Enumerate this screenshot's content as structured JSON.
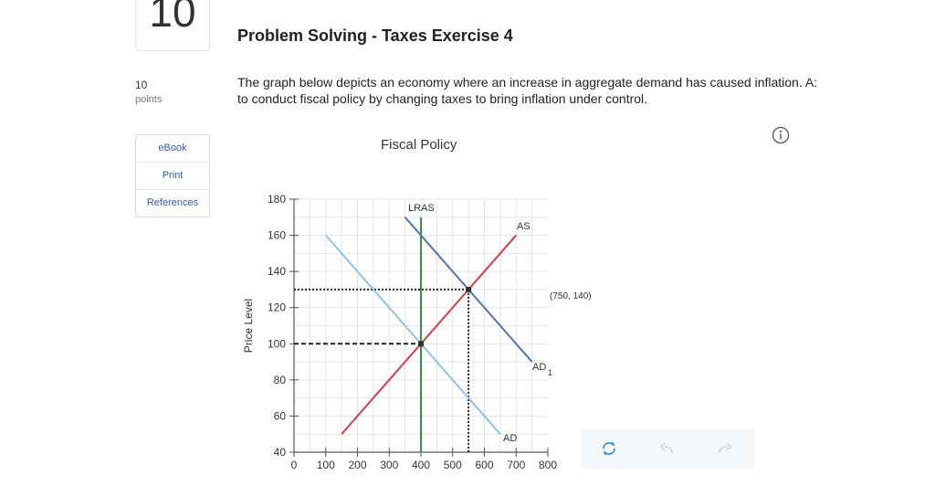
{
  "question": {
    "number": "10",
    "points_value": "10",
    "points_label": "points",
    "title": "Problem Solving - Taxes Exercise 4",
    "text": "The graph below depicts an economy where an increase in aggregate demand has caused inflation. A:\nto conduct fiscal policy by changing taxes to bring inflation under control."
  },
  "sidebar": {
    "items": [
      {
        "label": "eBook"
      },
      {
        "label": "Print"
      },
      {
        "label": "References"
      }
    ]
  },
  "graph": {
    "title": "Fiscal Policy",
    "ylabel": "Price Level",
    "info_icon": "info-circle-icon"
  },
  "toolbar": {
    "icons": [
      "reset-icon",
      "undo-icon",
      "redo-icon"
    ],
    "accent": "#2b86c9"
  },
  "chart_data": {
    "type": "line",
    "title": "Fiscal Policy",
    "xlabel": "",
    "ylabel": "Price Level",
    "xlim": [
      0,
      800
    ],
    "ylim": [
      40,
      180
    ],
    "x_ticks": [
      0,
      100,
      200,
      300,
      400,
      500,
      600,
      700,
      800
    ],
    "y_ticks": [
      40,
      60,
      80,
      100,
      120,
      140,
      160,
      180
    ],
    "grid": true,
    "series": [
      {
        "name": "LRAS",
        "color": "#2e9a3e",
        "points": [
          [
            400,
            40
          ],
          [
            400,
            170
          ]
        ]
      },
      {
        "name": "AS",
        "color": "#e0393e",
        "points": [
          [
            150,
            50
          ],
          [
            700,
            160
          ]
        ]
      },
      {
        "name": "AD",
        "color": "#8cc4e6",
        "points": [
          [
            100,
            160
          ],
          [
            650,
            50
          ]
        ]
      },
      {
        "name": "AD1",
        "color": "#4d74b0",
        "points": [
          [
            350,
            170
          ],
          [
            750,
            90
          ]
        ]
      }
    ],
    "equilibria": [
      {
        "x": 400,
        "y": 100
      },
      {
        "x": 550,
        "y": 130
      }
    ],
    "annotations": [
      {
        "text": "LRAS"
      },
      {
        "text": "AS"
      },
      {
        "text": "AD"
      },
      {
        "text": "AD",
        "subscript": "1"
      },
      {
        "text": "(750, 140)"
      }
    ]
  }
}
